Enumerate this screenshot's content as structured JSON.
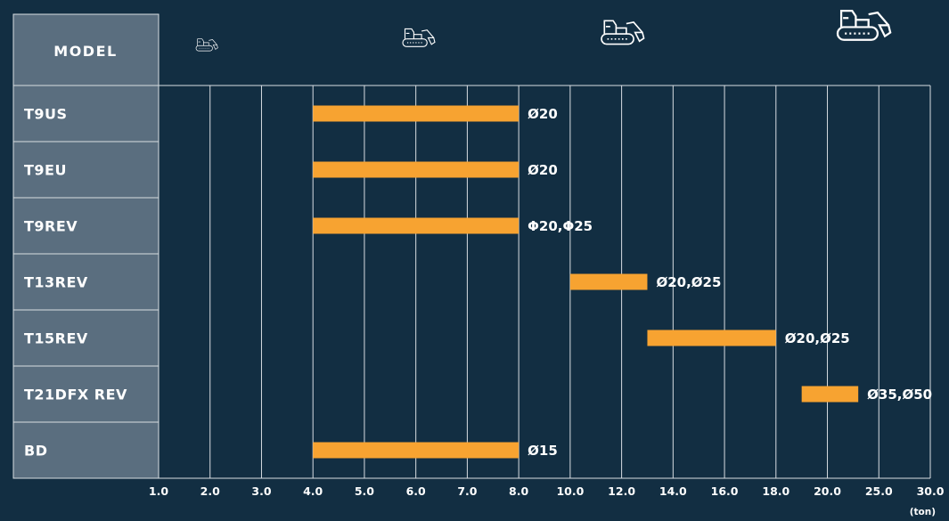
{
  "colors": {
    "background": "#122e42",
    "label_panel": "#5a6e7f",
    "bar": "#f7a331",
    "grid": "#d8dde2"
  },
  "header_label": "MODEL",
  "unit_label": "(ton)",
  "header_icons": [
    "excavator-icon-xs",
    "excavator-icon-sm",
    "excavator-icon-md",
    "excavator-icon-lg"
  ],
  "chart_data": {
    "type": "bar",
    "orientation": "horizontal",
    "xlabel": "",
    "ylabel": "MODEL",
    "x_ticks": [
      "1.0",
      "2.0",
      "3.0",
      "4.0",
      "5.0",
      "6.0",
      "7.0",
      "8.0",
      "10.0",
      "12.0",
      "14.0",
      "16.0",
      "18.0",
      "20.0",
      "25.0",
      "30.0"
    ],
    "x_tick_values": [
      1,
      2,
      3,
      4,
      5,
      6,
      7,
      8,
      10,
      12,
      14,
      16,
      18,
      20,
      25,
      30
    ],
    "xlim": [
      1.0,
      30.0
    ],
    "grid": true,
    "rows": [
      {
        "model": "T9US",
        "start": 4.0,
        "end": 8.0,
        "label": "Ø20"
      },
      {
        "model": "T9EU",
        "start": 4.0,
        "end": 8.0,
        "label": "Ø20"
      },
      {
        "model": "T9REV",
        "start": 4.0,
        "end": 8.0,
        "label": "Φ20,Φ25"
      },
      {
        "model": "T13REV",
        "start": 10.0,
        "end": 13.0,
        "label": "Ø20,Ø25"
      },
      {
        "model": "T15REV",
        "start": 13.0,
        "end": 18.0,
        "label": "Ø20,Ø25"
      },
      {
        "model": "T21DFX REV",
        "start": 19.0,
        "end": 23.0,
        "label": "Ø35,Ø50"
      },
      {
        "model": "BD",
        "start": 4.0,
        "end": 8.0,
        "label": "Ø15"
      }
    ]
  }
}
